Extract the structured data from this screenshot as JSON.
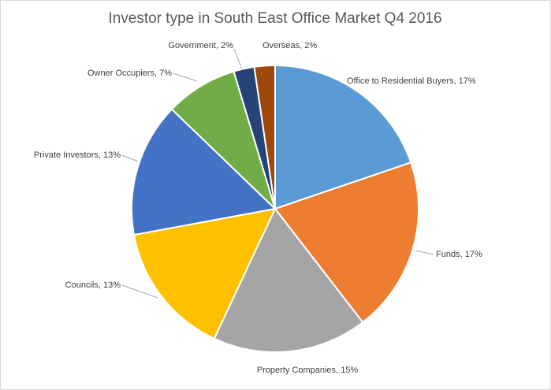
{
  "chart_data": {
    "type": "pie",
    "title": "Investor type in South East Office Market Q4 2016",
    "categories": [
      "Office to Residential Buyers",
      "Funds",
      "Property Companies",
      "Councils",
      "Private Investors",
      "Owner Occupiers",
      "Government",
      "Overseas"
    ],
    "values": [
      17,
      17,
      15,
      13,
      13,
      7,
      2,
      2
    ],
    "value_labels": [
      "17%",
      "17%",
      "15%",
      "13%",
      "13%",
      "7%",
      "2%",
      "2%"
    ],
    "label_separator": ", ",
    "colors": [
      "#5b9bd5",
      "#ed7d31",
      "#a5a5a5",
      "#ffc000",
      "#4472c4",
      "#70ad47",
      "#264478",
      "#9e480e"
    ]
  }
}
